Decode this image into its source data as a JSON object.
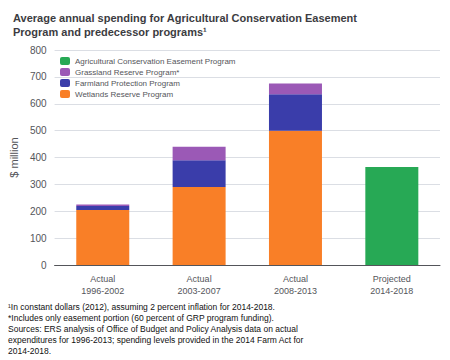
{
  "chart_data": {
    "type": "bar",
    "stacked": true,
    "title": "Average annual spending for Agricultural Conservation Easement\nProgram and predecessor programs¹",
    "ylabel": "$ million",
    "footnote": "¹In constant dollars (2012), assuming 2 percent inflation for 2014-2018.\n*Includes only easement portion (60 percent of GRP program funding).\nSources: ERS analysis of Office of Budget and Policy Analysis data on actual\nexpenditures for 1996-2013; spending levels provided in the 2014 Farm Act for\n2014-2018.",
    "categories": [
      "Actual\n1996-2002",
      "Actual\n2003-2007",
      "Actual\n2008-2013",
      "Projected\n2014-2018"
    ],
    "series": [
      {
        "name": "Wetlands Reserve Program",
        "color": "#F97F27",
        "values": [
          205,
          290,
          500,
          0
        ]
      },
      {
        "name": "Farmland Protection Program",
        "color": "#3A3DAA",
        "values": [
          15,
          100,
          135,
          0
        ]
      },
      {
        "name": "Grassland Reserve Program*",
        "color": "#9B59B6",
        "values": [
          5,
          50,
          40,
          0
        ]
      },
      {
        "name": "Agricultural Conservation Easement Program",
        "color": "#27A955",
        "values": [
          0,
          0,
          0,
          365
        ]
      }
    ],
    "ylim": [
      0,
      800
    ],
    "yticks": [
      0,
      100,
      200,
      300,
      400,
      500,
      600,
      700,
      800
    ],
    "grid": true,
    "legend": "upper left"
  }
}
